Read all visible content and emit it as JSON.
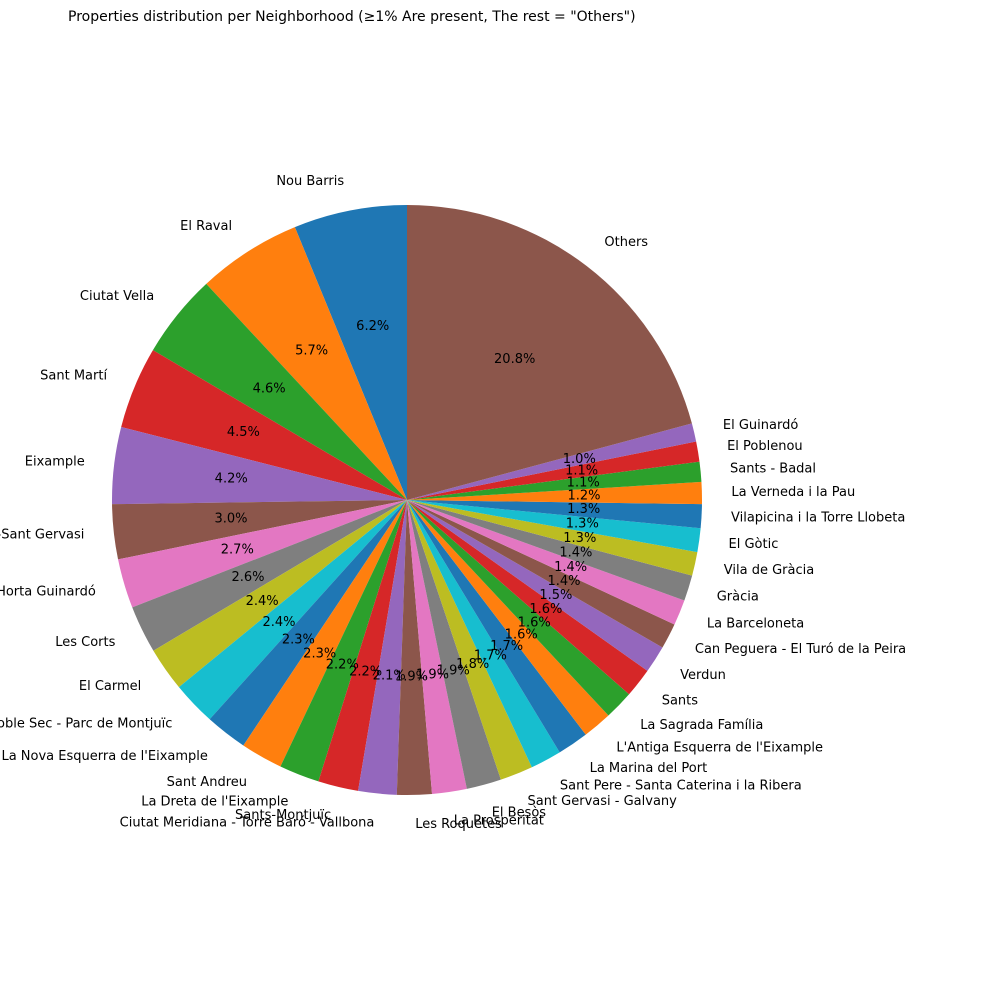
{
  "chart_data": {
    "type": "pie",
    "title": "Properties distribution per Neighborhood (≥1% Are present, The rest = \"Others\")",
    "start_angle_deg": 90,
    "direction": "counterclockwise",
    "slices": [
      {
        "label": "Nou Barris",
        "value": 6.2,
        "pct_label": "6.2%",
        "color": "#1f77b4"
      },
      {
        "label": "El Raval",
        "value": 5.7,
        "pct_label": "5.7%",
        "color": "#ff7f0e"
      },
      {
        "label": "Ciutat Vella",
        "value": 4.6,
        "pct_label": "4.6%",
        "color": "#2ca02c"
      },
      {
        "label": "Sant Martí",
        "value": 4.5,
        "pct_label": "4.5%",
        "color": "#d62728"
      },
      {
        "label": "Eixample",
        "value": 4.2,
        "pct_label": "4.2%",
        "color": "#9467bd"
      },
      {
        "label": "Sarrià-Sant Gervasi",
        "value": 3.0,
        "pct_label": "3.0%",
        "color": "#8c564b"
      },
      {
        "label": "Horta Guinardó",
        "value": 2.7,
        "pct_label": "2.7%",
        "color": "#e377c2"
      },
      {
        "label": "Les Corts",
        "value": 2.6,
        "pct_label": "2.6%",
        "color": "#7f7f7f"
      },
      {
        "label": "El Carmel",
        "value": 2.4,
        "pct_label": "2.4%",
        "color": "#bcbd22"
      },
      {
        "label": "El Poble Sec - Parc de Montjuïc",
        "value": 2.4,
        "pct_label": "2.4%",
        "color": "#17becf"
      },
      {
        "label": "La Nova Esquerra de l'Eixample",
        "value": 2.3,
        "pct_label": "2.3%",
        "color": "#1f77b4"
      },
      {
        "label": "Sant Andreu",
        "value": 2.3,
        "pct_label": "2.3%",
        "color": "#ff7f0e"
      },
      {
        "label": "La Dreta de l'Eixample",
        "value": 2.2,
        "pct_label": "2.2%",
        "color": "#2ca02c"
      },
      {
        "label": "Sants-Montjuïc",
        "value": 2.2,
        "pct_label": "2.2%",
        "color": "#d62728"
      },
      {
        "label": "Ciutat Meridiana - Torre Baró - Vallbona",
        "value": 2.1,
        "pct_label": "2.1%",
        "color": "#9467bd"
      },
      {
        "label": "Les Roquetes",
        "value": 1.9,
        "pct_label": "1.9%",
        "color": "#8c564b"
      },
      {
        "label": "La Prosperitat",
        "value": 1.9,
        "pct_label": "1.9%",
        "color": "#e377c2"
      },
      {
        "label": "El Besòs",
        "value": 1.9,
        "pct_label": "1.9%",
        "color": "#7f7f7f"
      },
      {
        "label": "Sant Gervasi - Galvany",
        "value": 1.8,
        "pct_label": "1.8%",
        "color": "#bcbd22"
      },
      {
        "label": "Sant Pere - Santa Caterina i la Ribera",
        "value": 1.7,
        "pct_label": "1.7%",
        "color": "#17becf"
      },
      {
        "label": "La Marina del Port",
        "value": 1.7,
        "pct_label": "1.7%",
        "color": "#1f77b4"
      },
      {
        "label": "L'Antiga Esquerra de l'Eixample",
        "value": 1.6,
        "pct_label": "1.6%",
        "color": "#ff7f0e"
      },
      {
        "label": "La Sagrada Família",
        "value": 1.6,
        "pct_label": "1.6%",
        "color": "#2ca02c"
      },
      {
        "label": "Sants",
        "value": 1.6,
        "pct_label": "1.6%",
        "color": "#d62728"
      },
      {
        "label": "Verdun",
        "value": 1.5,
        "pct_label": "1.5%",
        "color": "#9467bd"
      },
      {
        "label": "Can Peguera - El Turó de la Peira",
        "value": 1.4,
        "pct_label": "1.4%",
        "color": "#8c564b"
      },
      {
        "label": "La Barceloneta",
        "value": 1.4,
        "pct_label": "1.4%",
        "color": "#e377c2"
      },
      {
        "label": "Gràcia",
        "value": 1.4,
        "pct_label": "1.4%",
        "color": "#7f7f7f"
      },
      {
        "label": "Vila de Gràcia",
        "value": 1.3,
        "pct_label": "1.3%",
        "color": "#bcbd22"
      },
      {
        "label": "El Gòtic",
        "value": 1.3,
        "pct_label": "1.3%",
        "color": "#17becf"
      },
      {
        "label": "Vilapicina i la Torre Llobeta",
        "value": 1.3,
        "pct_label": "1.3%",
        "color": "#1f77b4"
      },
      {
        "label": "La Verneda i la Pau",
        "value": 1.2,
        "pct_label": "1.2%",
        "color": "#ff7f0e"
      },
      {
        "label": "Sants - Badal",
        "value": 1.1,
        "pct_label": "1.1%",
        "color": "#2ca02c"
      },
      {
        "label": "El Poblenou",
        "value": 1.1,
        "pct_label": "1.1%",
        "color": "#d62728"
      },
      {
        "label": "El Guinardó",
        "value": 1.0,
        "pct_label": "1.0%",
        "color": "#9467bd"
      },
      {
        "label": "Others",
        "value": 20.8,
        "pct_label": "20.8%",
        "color": "#8c564b"
      }
    ]
  }
}
